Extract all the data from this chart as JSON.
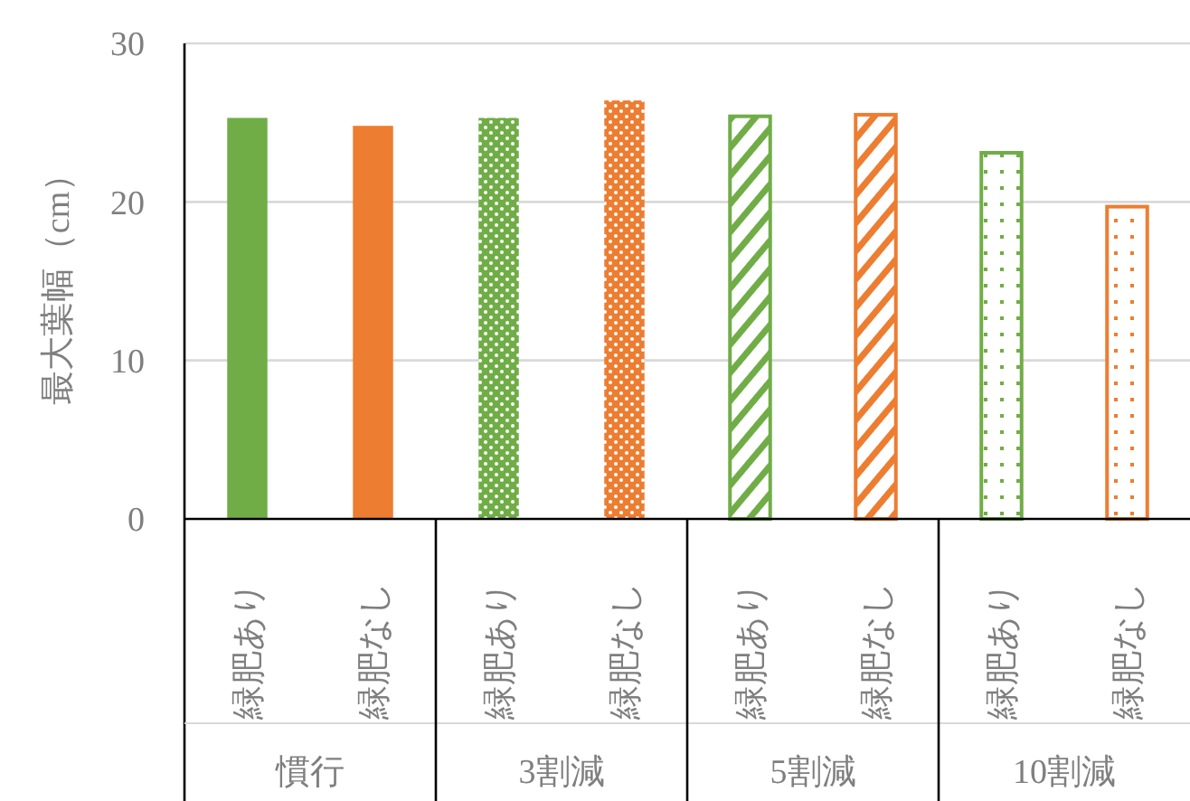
{
  "chart_data": {
    "type": "bar",
    "ylabel": "最大葉幅（cm）",
    "categories": [
      "緑肥あり",
      "緑肥なし",
      "緑肥あり",
      "緑肥なし",
      "緑肥あり",
      "緑肥なし",
      "緑肥あり",
      "緑肥なし"
    ],
    "values": [
      25.3,
      24.8,
      25.3,
      26.4,
      25.4,
      25.5,
      23.1,
      19.7
    ],
    "colors": [
      "#70ad47",
      "#ed7d31",
      "#70ad47",
      "#ed7d31",
      "#70ad47",
      "#ed7d31",
      "#70ad47",
      "#ed7d31"
    ],
    "ylim": [
      0,
      30
    ],
    "yticks": [
      0,
      10,
      20,
      30
    ],
    "grid": "y",
    "annotations": [
      "慣行",
      "3割減",
      "5割減",
      "10割減"
    ]
  }
}
